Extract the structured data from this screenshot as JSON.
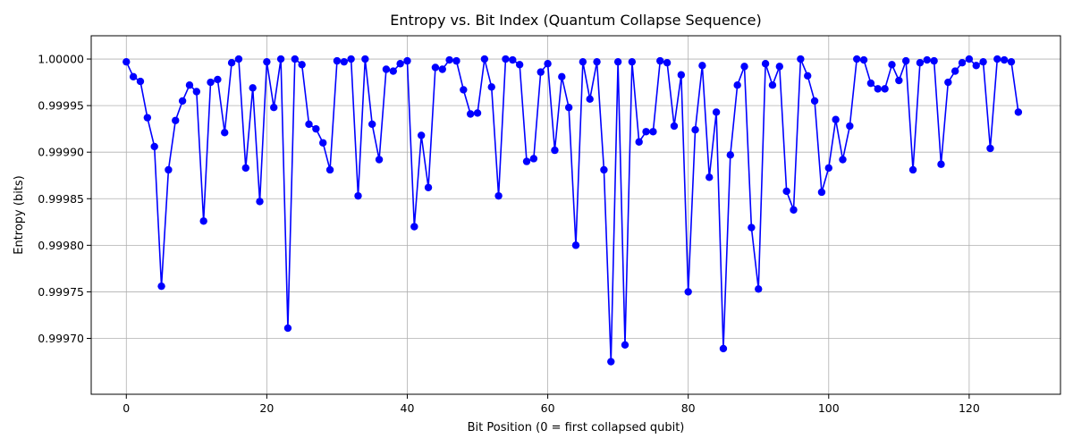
{
  "chart_data": {
    "type": "line",
    "title": "Entropy vs. Bit Index (Quantum Collapse Sequence)",
    "xlabel": "Bit Position (0 = first collapsed qubit)",
    "ylabel": "Entropy (bits)",
    "xlim": [
      -5,
      133
    ],
    "ylim": [
      0.99964,
      1.000025
    ],
    "x_ticks": [
      0,
      20,
      40,
      60,
      80,
      100,
      120
    ],
    "x_tick_labels": [
      "0",
      "20",
      "40",
      "60",
      "80",
      "100",
      "120"
    ],
    "y_ticks": [
      0.9997,
      0.99975,
      0.9998,
      0.99985,
      0.9999,
      0.99995,
      1.0
    ],
    "y_tick_labels": [
      "0.99970",
      "0.99975",
      "0.99980",
      "0.99985",
      "0.99990",
      "0.99995",
      "1.00000"
    ],
    "grid": true,
    "series_color": "#0000ff",
    "marker": "circle",
    "series": [
      {
        "x": [
          0,
          1,
          2,
          3,
          4,
          5,
          6,
          7,
          8,
          9,
          10,
          11,
          12,
          13,
          14,
          15,
          16,
          17,
          18,
          19,
          20,
          21,
          22,
          23,
          24,
          25,
          26,
          27,
          28,
          29,
          30,
          31,
          32,
          33,
          34,
          35,
          36,
          37,
          38,
          39,
          40,
          41,
          42,
          43,
          44,
          45,
          46,
          47,
          48,
          49,
          50,
          51,
          52,
          53,
          54,
          55,
          56,
          57,
          58,
          59,
          60,
          61,
          62,
          63,
          64,
          65,
          66,
          67,
          68,
          69,
          70,
          71,
          72,
          73,
          74,
          75,
          76,
          77,
          78,
          79,
          80,
          81,
          82,
          83,
          84,
          85,
          86,
          87,
          88,
          89,
          90,
          91,
          92,
          93,
          94,
          95,
          96,
          97,
          98,
          99,
          100,
          101,
          102,
          103,
          104,
          105,
          106,
          107,
          108,
          109,
          110,
          111,
          112,
          113,
          114,
          115,
          116,
          117,
          118,
          119,
          120,
          121,
          122,
          123,
          124,
          125,
          126,
          127
        ],
        "values": [
          0.999997,
          0.999981,
          0.999976,
          0.999937,
          0.999906,
          0.999756,
          0.999881,
          0.999934,
          0.999955,
          0.999972,
          0.999965,
          0.999826,
          0.999975,
          0.999978,
          0.999921,
          0.999996,
          1.0,
          0.999883,
          0.999969,
          0.999847,
          0.999997,
          0.999948,
          1.0,
          0.999711,
          1.0,
          0.999994,
          0.99993,
          0.999925,
          0.99991,
          0.999881,
          0.999998,
          0.999997,
          1.0,
          0.999853,
          1.0,
          0.99993,
          0.999892,
          0.999989,
          0.999987,
          0.999995,
          0.999998,
          0.99982,
          0.999918,
          0.999862,
          0.999991,
          0.999989,
          0.999999,
          0.999998,
          0.999967,
          0.999941,
          0.999942,
          1.0,
          0.99997,
          0.999853,
          1.0,
          0.999999,
          0.999994,
          0.99989,
          0.999893,
          0.999986,
          0.999995,
          0.999902,
          0.999981,
          0.999948,
          0.9998,
          0.999997,
          0.999957,
          0.999997,
          0.999881,
          0.999675,
          0.999997,
          0.999693,
          0.999997,
          0.999911,
          0.999922,
          0.999922,
          0.999998,
          0.999996,
          0.999928,
          0.999983,
          0.99975,
          0.999924,
          0.999993,
          0.999873,
          0.999943,
          0.999689,
          0.999897,
          0.999972,
          0.999992,
          0.999819,
          0.999753,
          0.999995,
          0.999972,
          0.999992,
          0.999858,
          0.999838,
          1.0,
          0.999982,
          0.999955,
          0.999857,
          0.999883,
          0.999935,
          0.999892,
          0.999928,
          1.0,
          0.999999,
          0.999974,
          0.999968,
          0.999968,
          0.999994,
          0.999977,
          0.999998,
          0.999881,
          0.999996,
          0.999999,
          0.999998,
          0.999887,
          0.999975,
          0.999987,
          0.999996,
          1.0,
          0.999993,
          0.999997,
          0.999904,
          1.0,
          0.999999,
          0.999997,
          0.999943
        ]
      }
    ]
  }
}
